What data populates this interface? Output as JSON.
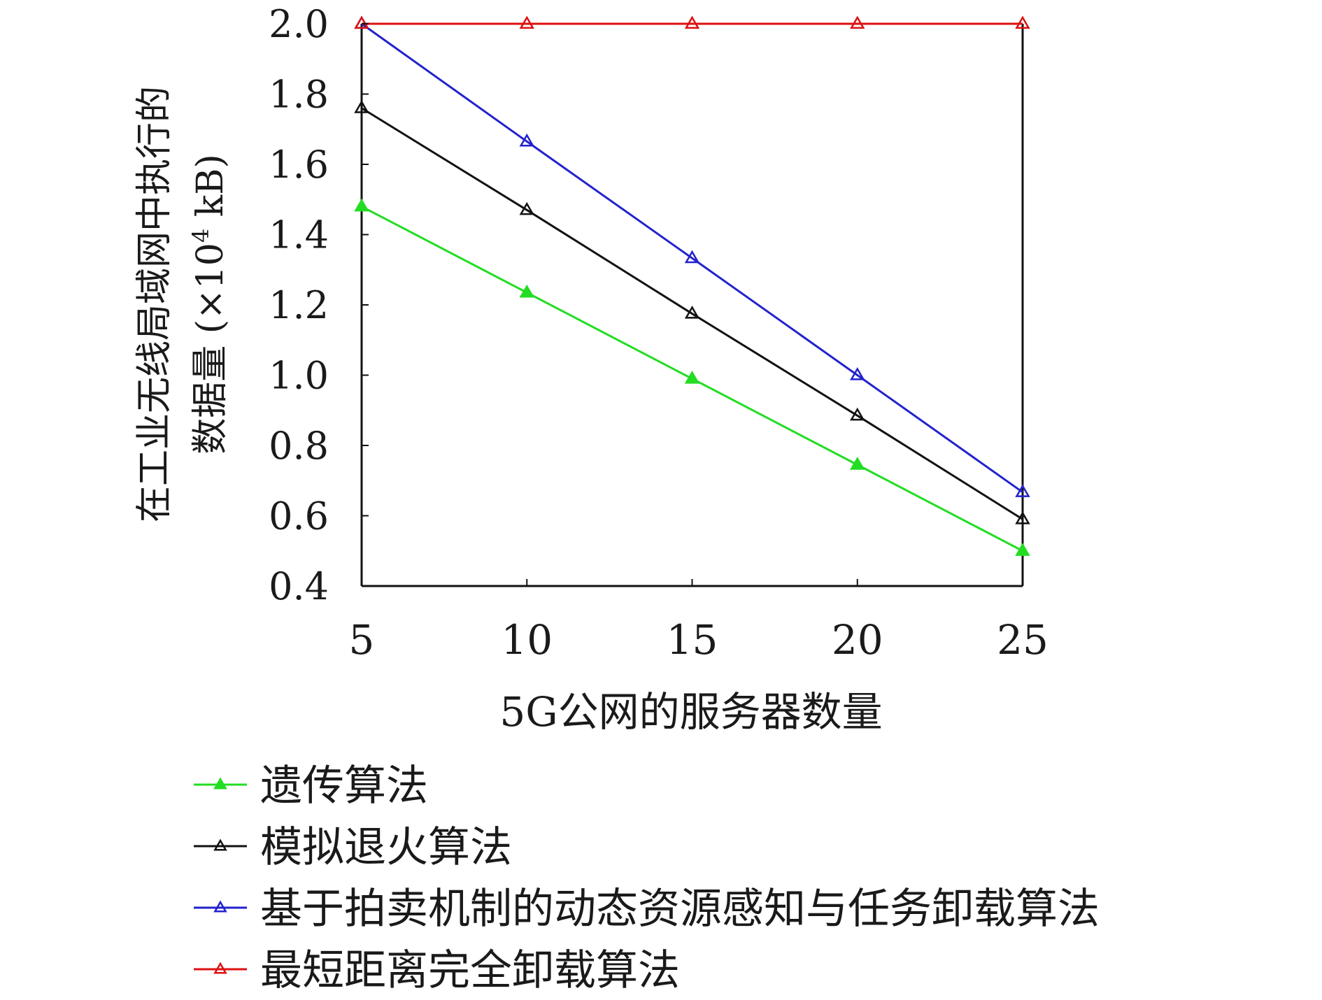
{
  "chart_data": {
    "type": "line",
    "title": "",
    "xlabel": "5G公网的服务器数量",
    "ylabel_line1": "在工业无线局域网中执行的",
    "ylabel_line2_prefix": "数据量 (×10",
    "ylabel_line2_sup": "4",
    "ylabel_line2_suffix": " kB)",
    "x": [
      5,
      10,
      15,
      20,
      25
    ],
    "x_ticks": [
      "5",
      "10",
      "15",
      "20",
      "25"
    ],
    "y_ticks": [
      "0.4",
      "0.6",
      "0.8",
      "1.0",
      "1.2",
      "1.4",
      "1.6",
      "1.8",
      "2.0"
    ],
    "y_tick_values": [
      0.4,
      0.6,
      0.8,
      1.0,
      1.2,
      1.4,
      1.6,
      1.8,
      2.0
    ],
    "xlim": [
      5,
      25
    ],
    "ylim": [
      0.4,
      2.0
    ],
    "grid": false,
    "legend_position": "bottom",
    "marker": "triangle",
    "series": [
      {
        "name": "遗传算法",
        "color": "#22dd22",
        "filled_marker": true,
        "values": [
          1.48,
          1.235,
          0.99,
          0.745,
          0.5
        ]
      },
      {
        "name": "模拟退火算法",
        "color": "#111111",
        "filled_marker": false,
        "values": [
          1.76,
          1.47,
          1.175,
          0.885,
          0.59
        ]
      },
      {
        "name": "基于拍卖机制的动态资源感知与任务卸载算法",
        "color": "#2222cc",
        "filled_marker": false,
        "values": [
          2.0,
          1.665,
          1.333,
          1.0,
          0.667
        ]
      },
      {
        "name": "最短距离完全卸载算法",
        "color": "#dd1111",
        "filled_marker": false,
        "values": [
          2.0,
          2.0,
          2.0,
          2.0,
          2.0
        ]
      }
    ]
  }
}
